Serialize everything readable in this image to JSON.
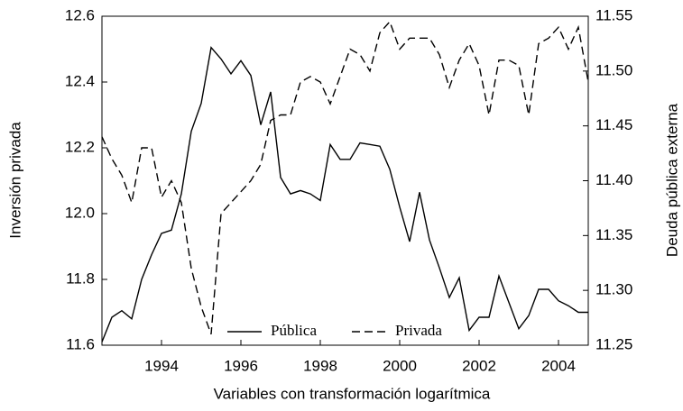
{
  "chart_data": {
    "type": "line",
    "xlabel": "Variables con transformación logarítmica",
    "ylabel": "Inversión privada",
    "y2label": "Deuda pública externa",
    "x": [
      1992.5,
      1992.75,
      1993,
      1993.25,
      1993.5,
      1993.75,
      1994,
      1994.25,
      1994.5,
      1994.75,
      1995,
      1995.25,
      1995.5,
      1995.75,
      1996,
      1996.25,
      1996.5,
      1996.75,
      1997,
      1997.25,
      1997.5,
      1997.75,
      1998,
      1998.25,
      1998.5,
      1998.75,
      1999,
      1999.25,
      1999.5,
      1999.75,
      2000,
      2000.25,
      2000.5,
      2000.75,
      2001,
      2001.25,
      2001.5,
      2001.75,
      2002,
      2002.25,
      2002.5,
      2002.75,
      2003,
      2003.25,
      2003.5,
      2003.75,
      2004,
      2004.25,
      2004.5,
      2004.75
    ],
    "series": [
      {
        "name": "Pública",
        "color": "#000000",
        "dash": false,
        "values": [
          11.61,
          11.685,
          11.705,
          11.68,
          11.8,
          11.875,
          11.94,
          11.95,
          12.06,
          12.25,
          12.335,
          12.505,
          12.47,
          12.425,
          12.465,
          12.42,
          12.27,
          12.37,
          12.11,
          12.06,
          12.07,
          12.06,
          12.04,
          12.21,
          12.165,
          12.165,
          12.215,
          12.21,
          12.205,
          12.135,
          12.02,
          11.915,
          12.065,
          11.92,
          11.835,
          11.745,
          11.805,
          11.645,
          11.685,
          11.685,
          11.81,
          11.73,
          11.65,
          11.69,
          11.77,
          11.77,
          11.735,
          11.72,
          11.7,
          11.7
        ]
      },
      {
        "name": "Privada",
        "color": "#000000",
        "dash": true,
        "axis": "y2",
        "values": [
          11.44,
          11.42,
          11.405,
          11.38,
          11.43,
          11.43,
          11.385,
          11.4,
          11.38,
          11.32,
          11.285,
          11.26,
          11.37,
          11.38,
          11.39,
          11.4,
          11.415,
          11.455,
          11.46,
          11.46,
          11.49,
          11.495,
          11.49,
          11.47,
          11.495,
          11.52,
          11.515,
          11.5,
          11.535,
          11.545,
          11.52,
          11.53,
          11.53,
          11.53,
          11.515,
          11.485,
          11.51,
          11.525,
          11.505,
          11.46,
          11.51,
          11.51,
          11.505,
          11.46,
          11.525,
          11.53,
          11.54,
          11.52,
          11.54,
          11.49
        ]
      }
    ],
    "xlim": [
      1992.5,
      2004.75
    ],
    "xticks": [
      1994,
      1996,
      1998,
      2000,
      2002,
      2004
    ],
    "ylim": [
      11.6,
      12.6
    ],
    "yticks": [
      11.6,
      11.8,
      {
        "value": 12,
        "label": "12.0"
      },
      12.2,
      12.4,
      12.6
    ],
    "y2lim": [
      11.25,
      11.55
    ],
    "y2ticks": [
      11.25,
      {
        "value": 11.3,
        "label": "11.30"
      },
      11.35,
      {
        "value": 11.4,
        "label": "11.40"
      },
      11.45,
      {
        "value": 11.5,
        "label": "11.50"
      },
      11.55
    ],
    "grid": false,
    "legend": "bottom"
  }
}
